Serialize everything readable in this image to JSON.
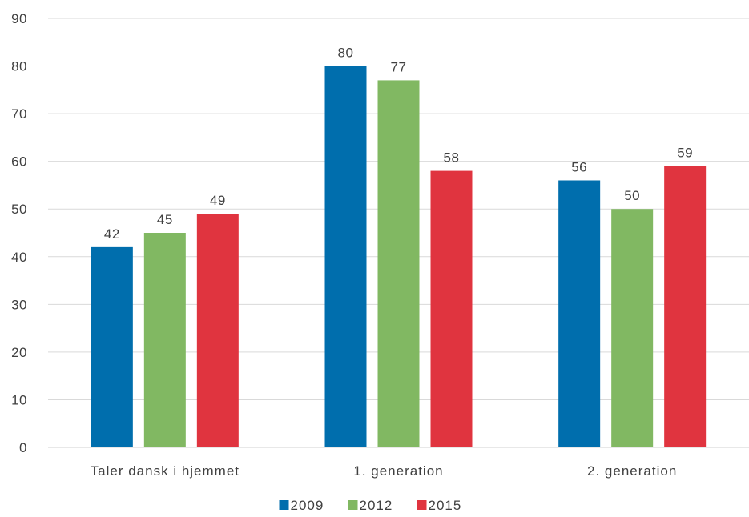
{
  "chart_data": {
    "type": "bar",
    "title": "",
    "xlabel": "",
    "ylabel": "",
    "categories": [
      "Taler dansk i hjemmet",
      "1. generation",
      "2. generation"
    ],
    "series": [
      {
        "name": "2009",
        "color": "#006EAD",
        "values": [
          42,
          80,
          56
        ]
      },
      {
        "name": "2012",
        "color": "#81B862",
        "values": [
          45,
          77,
          50
        ]
      },
      {
        "name": "2015",
        "color": "#E0343F",
        "values": [
          49,
          58,
          59
        ]
      }
    ],
    "ylim": [
      0,
      90
    ],
    "yticks": [
      0,
      10,
      20,
      30,
      40,
      50,
      60,
      70,
      80,
      90
    ],
    "grid": true,
    "legend_position": "bottom",
    "data_labels": true
  }
}
